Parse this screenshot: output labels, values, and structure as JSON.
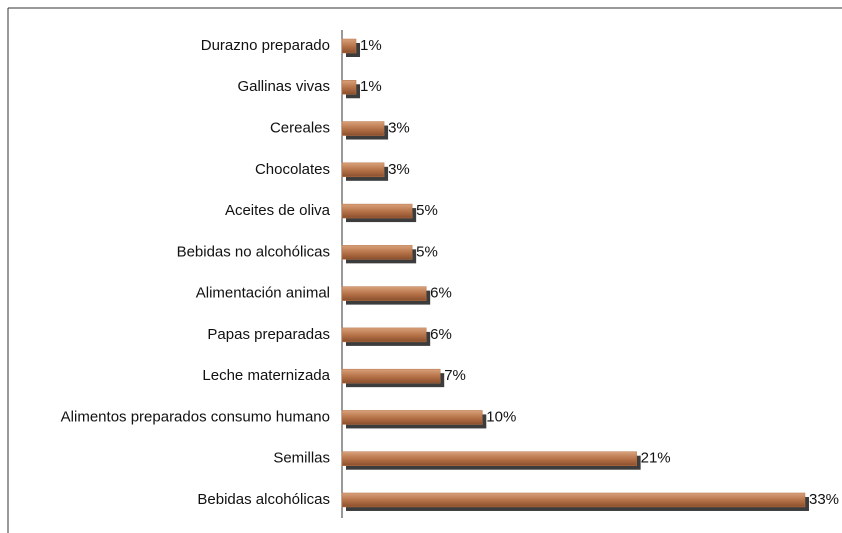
{
  "chart_data": {
    "type": "bar",
    "orientation": "horizontal",
    "categories": [
      "Durazno preparado",
      "Gallinas vivas",
      "Cereales",
      "Chocolates",
      "Aceites de oliva",
      "Bebidas no alcohólicas",
      "Alimentación animal",
      "Papas preparadas",
      "Leche maternizada",
      "Alimentos preparados consumo humano",
      "Semillas",
      "Bebidas alcohólicas"
    ],
    "values": [
      1,
      1,
      3,
      3,
      5,
      5,
      6,
      6,
      7,
      10,
      21,
      33
    ],
    "value_labels": [
      "1%",
      "1%",
      "3%",
      "3%",
      "5%",
      "5%",
      "6%",
      "6%",
      "7%",
      "10%",
      "21%",
      "33%"
    ],
    "color": "#b8744a"
  }
}
